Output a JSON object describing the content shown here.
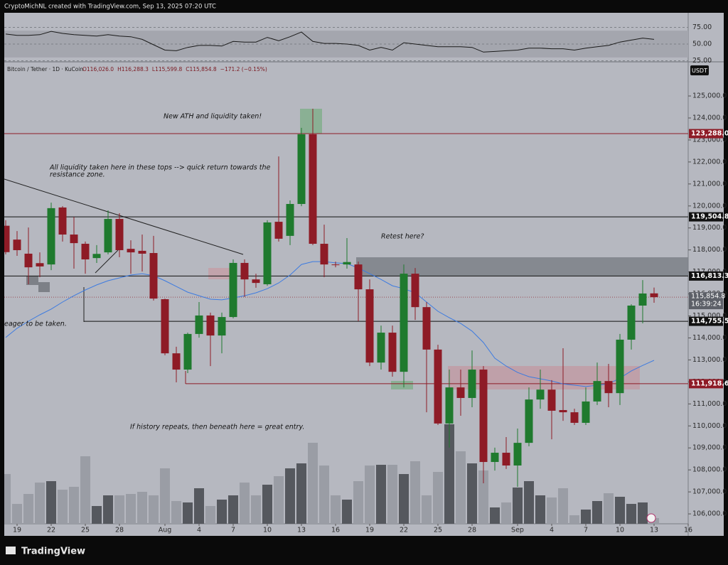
{
  "header": {
    "author": "CryptoMichNL created with TradingView.com, Sep 13, 2025 07:20 UTC",
    "brand": "TradingView"
  },
  "chart_data": {
    "type": "candlestick",
    "symbol": "Bitcoin / Tether · 1D · KuCoin",
    "legend_values": [
      "O116,026.0",
      "H116,288.3",
      "L115,599.8",
      "C115,854.8",
      "−171.2 (−0.15%)"
    ],
    "currency": "USDT",
    "up_color": "#1f7a2e",
    "down_color": "#8e1b26",
    "open": [
      119100,
      118470,
      117830,
      117400,
      117340,
      119930,
      118700,
      118280,
      117630,
      117890,
      119410,
      118050,
      117960,
      117860,
      115760,
      113300,
      112560,
      114180,
      115020,
      114110,
      114950,
      117410,
      116660,
      116440,
      119280,
      118640,
      120090,
      123260,
      118280,
      117340,
      117340,
      117340,
      116210,
      112880,
      114240,
      112460,
      116920,
      115400,
      113470,
      110110,
      111750,
      111270,
      112560,
      108360,
      108780,
      108200,
      109230,
      111200,
      111650,
      110720,
      110620,
      110140,
      111110,
      112040,
      111490,
      113920,
      115470,
      116026.0
    ],
    "high": [
      119350,
      118860,
      119020,
      117890,
      120150,
      119990,
      119500,
      118380,
      118220,
      119800,
      119670,
      118440,
      118700,
      118640,
      115790,
      113600,
      114240,
      115630,
      115150,
      115150,
      117570,
      117570,
      116920,
      119350,
      122250,
      120250,
      123550,
      124420,
      119150,
      117470,
      118540,
      117470,
      116660,
      114560,
      114560,
      117340,
      117180,
      115630,
      113690,
      112560,
      112560,
      113430,
      112720,
      109010,
      109490,
      109880,
      111750,
      112560,
      112080,
      113530,
      110780,
      111750,
      112880,
      112820,
      114180,
      115530,
      116630,
      116288.3
    ],
    "low": [
      117800,
      117730,
      116440,
      116760,
      117080,
      118380,
      117150,
      116920,
      117410,
      117800,
      117670,
      116920,
      117020,
      115700,
      113210,
      111980,
      112400,
      114010,
      112720,
      113300,
      114890,
      115860,
      116280,
      116370,
      118380,
      118220,
      119990,
      118220,
      116760,
      117210,
      117150,
      114760,
      112720,
      112560,
      112240,
      111750,
      114820,
      110620,
      110040,
      109010,
      110460,
      110850,
      107390,
      107970,
      108040,
      107230,
      109070,
      110780,
      109390,
      110230,
      110040,
      110040,
      110950,
      110850,
      110950,
      113470,
      114660,
      115599.8
    ],
    "close": [
      117900,
      117990,
      117210,
      117250,
      119900,
      118700,
      118310,
      117570,
      117820,
      119410,
      117990,
      117890,
      117830,
      115790,
      113300,
      112560,
      114180,
      115020,
      114110,
      114950,
      117410,
      116660,
      116500,
      119250,
      118510,
      120090,
      123260,
      118280,
      117340,
      117310,
      117450,
      116210,
      112880,
      114240,
      112460,
      116920,
      115400,
      113470,
      110110,
      111750,
      111270,
      112560,
      108360,
      108780,
      108200,
      109230,
      111200,
      111650,
      110690,
      110620,
      110140,
      111110,
      112040,
      111490,
      113920,
      115470,
      116020,
      115854.8
    ],
    "volume": [
      70,
      28,
      42,
      58,
      60,
      48,
      52,
      95,
      25,
      40,
      40,
      42,
      45,
      40,
      78,
      32,
      30,
      50,
      25,
      34,
      40,
      58,
      40,
      55,
      67,
      78,
      85,
      114,
      82,
      40,
      34,
      60,
      82,
      83,
      83,
      70,
      88,
      40,
      73,
      140,
      102,
      85,
      75,
      23,
      30,
      51,
      60,
      40,
      37,
      50,
      12,
      20,
      32,
      43,
      38,
      28,
      30,
      8
    ],
    "ma": {
      "color": "#3d7be0",
      "values": [
        114020,
        114440,
        114760,
        115050,
        115310,
        115630,
        115920,
        116180,
        116410,
        116600,
        116730,
        116860,
        116920,
        116830,
        116600,
        116340,
        116080,
        115920,
        115760,
        115730,
        115820,
        115920,
        116050,
        116240,
        116500,
        116860,
        117340,
        117470,
        117470,
        117410,
        117380,
        117180,
        116920,
        116660,
        116370,
        116240,
        116050,
        115630,
        115210,
        114920,
        114660,
        114310,
        113790,
        113080,
        112720,
        112430,
        112240,
        112140,
        112040,
        111910,
        111850,
        111790,
        111850,
        111910,
        112170,
        112500,
        112750,
        112980
      ]
    },
    "rsi": {
      "color": "#1a1a1a",
      "band": [
        30,
        70
      ],
      "ylim": [
        24.5,
        96.8
      ],
      "values": [
        65,
        63,
        63,
        64,
        69,
        66,
        64,
        63,
        62,
        64,
        62,
        61,
        57,
        49,
        41,
        40,
        45,
        48,
        48,
        47,
        54,
        53,
        53,
        60,
        55,
        61,
        68,
        54,
        51,
        51,
        50,
        48,
        41,
        45,
        41,
        52,
        50,
        48,
        46,
        46,
        46,
        45,
        38,
        39,
        40,
        41,
        44,
        44,
        43,
        43,
        41,
        44,
        46,
        48,
        53,
        56,
        59,
        57
      ],
      "yticks": [
        {
          "value": 75,
          "label": "75.00"
        },
        {
          "value": 50,
          "label": "50.00"
        },
        {
          "value": 25,
          "label": "25.00"
        }
      ]
    },
    "xlim": [
      -0.5,
      60
    ],
    "ylim": [
      105550,
      126520
    ],
    "yticks": [
      {
        "value": 106000,
        "label": "106,000.0"
      },
      {
        "value": 107000,
        "label": "107,000.0"
      },
      {
        "value": 108000,
        "label": "108,000.0"
      },
      {
        "value": 109000,
        "label": "109,000.0"
      },
      {
        "value": 110000,
        "label": "110,000.0"
      },
      {
        "value": 111000,
        "label": "111,000.0"
      },
      {
        "value": 112000,
        "label": "112,000.0"
      },
      {
        "value": 113000,
        "label": "113,000.0"
      },
      {
        "value": 114000,
        "label": "114,000.0"
      },
      {
        "value": 115000,
        "label": "115,000.0"
      },
      {
        "value": 116000,
        "label": "116,000.0"
      },
      {
        "value": 117000,
        "label": "117,000.0"
      },
      {
        "value": 118000,
        "label": "118,000.0"
      },
      {
        "value": 119000,
        "label": "119,000.0"
      },
      {
        "value": 120000,
        "label": "120,000.0"
      },
      {
        "value": 121000,
        "label": "121,000.0"
      },
      {
        "value": 122000,
        "label": "122,000.0"
      },
      {
        "value": 123000,
        "label": "123,000.0"
      },
      {
        "value": 124000,
        "label": "124,000.0"
      },
      {
        "value": 125000,
        "label": "125,000.0"
      }
    ],
    "xticks": [
      {
        "value": 1,
        "label": "19"
      },
      {
        "value": 4,
        "label": "22"
      },
      {
        "value": 7,
        "label": "25"
      },
      {
        "value": 10,
        "label": "28"
      },
      {
        "value": 14,
        "label": "Aug"
      },
      {
        "value": 17,
        "label": "4"
      },
      {
        "value": 20,
        "label": "7"
      },
      {
        "value": 23,
        "label": "10"
      },
      {
        "value": 26,
        "label": "13"
      },
      {
        "value": 29,
        "label": "16"
      },
      {
        "value": 32,
        "label": "19"
      },
      {
        "value": 35,
        "label": "22"
      },
      {
        "value": 38,
        "label": "25"
      },
      {
        "value": 41,
        "label": "28"
      },
      {
        "value": 45,
        "label": "Sep"
      },
      {
        "value": 48,
        "label": "4"
      },
      {
        "value": 51,
        "label": "7"
      },
      {
        "value": 54,
        "label": "10"
      },
      {
        "value": 57,
        "label": "13"
      },
      {
        "value": 60,
        "label": "16"
      }
    ],
    "levels": [
      {
        "value": 123288.0,
        "label": "123,288.0",
        "color": "#8e1b26"
      },
      {
        "value": 119504.8,
        "label": "119,504.8",
        "color": "#111111"
      },
      {
        "value": 116813.3,
        "label": "116,813.3",
        "color": "#111111"
      },
      {
        "value": 114755.5,
        "label": "114,755.5",
        "color": "#111111"
      },
      {
        "value": 111918.6,
        "label": "111,918.6",
        "color": "#8e1b26"
      }
    ],
    "last_price": {
      "value": 115854.8,
      "label": "115,854.8",
      "countdown": "16:39:24"
    },
    "annotations": [
      "New ATH and liquidity taken!",
      "All liquidity taken here in these tops --> quick return towards the",
      "resistance zone.",
      "Retest here?",
      "eager to be taken.",
      "If history repeats, then beneath here = great entry."
    ]
  }
}
